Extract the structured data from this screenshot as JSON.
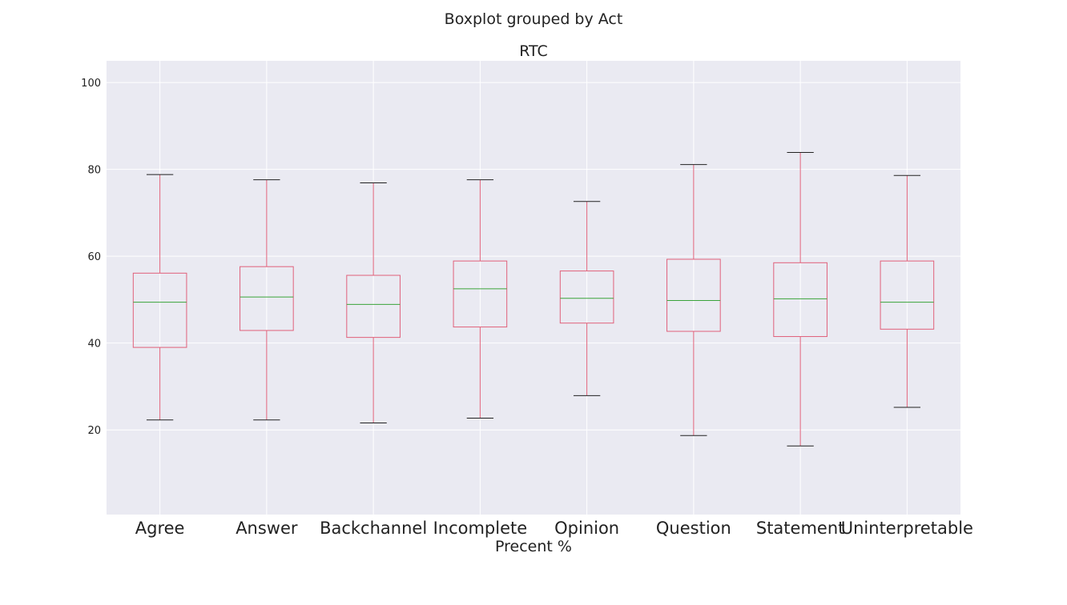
{
  "chart_data": {
    "type": "boxplot",
    "suptitle": "Boxplot grouped by Act",
    "title": "RTC",
    "xlabel": "Precent %",
    "ylabel": "",
    "ylim": [
      0.5,
      105
    ],
    "yticks": [
      20,
      40,
      60,
      80,
      100
    ],
    "grid": true,
    "colors": {
      "background": "#eaeaf2",
      "grid": "#ffffff",
      "box": "#e0607a",
      "median": "#3aa33a",
      "cap": "#222222"
    },
    "categories": [
      "Agree",
      "Answer",
      "Backchannel",
      "Incomplete",
      "Opinion",
      "Question",
      "Statement",
      "Uninterpretable"
    ],
    "boxes": [
      {
        "whisker_low": 22.3,
        "q1": 39.0,
        "median": 49.4,
        "q3": 56.1,
        "whisker_high": 78.8
      },
      {
        "whisker_low": 22.3,
        "q1": 42.9,
        "median": 50.6,
        "q3": 57.6,
        "whisker_high": 77.6
      },
      {
        "whisker_low": 21.6,
        "q1": 41.3,
        "median": 48.9,
        "q3": 55.6,
        "whisker_high": 76.9
      },
      {
        "whisker_low": 22.7,
        "q1": 43.7,
        "median": 52.5,
        "q3": 58.9,
        "whisker_high": 77.6
      },
      {
        "whisker_low": 27.9,
        "q1": 44.6,
        "median": 50.3,
        "q3": 56.6,
        "whisker_high": 72.6
      },
      {
        "whisker_low": 18.7,
        "q1": 42.7,
        "median": 49.8,
        "q3": 59.3,
        "whisker_high": 81.1
      },
      {
        "whisker_low": 16.3,
        "q1": 41.5,
        "median": 50.2,
        "q3": 58.5,
        "whisker_high": 83.9
      },
      {
        "whisker_low": 25.2,
        "q1": 43.2,
        "median": 49.4,
        "q3": 58.9,
        "whisker_high": 78.6
      }
    ]
  }
}
